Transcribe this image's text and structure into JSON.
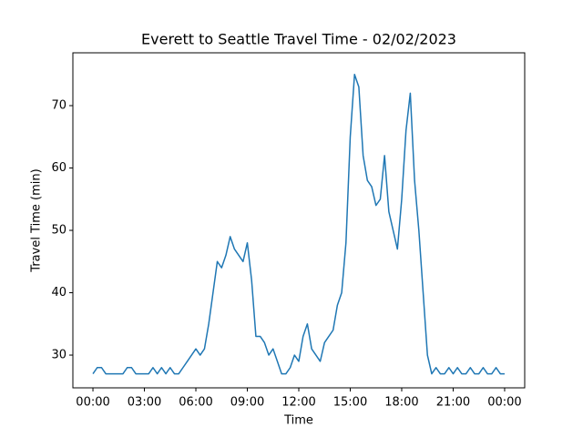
{
  "chart_data": {
    "type": "line",
    "title": "Everett to Seattle Travel Time - 02/02/2023",
    "x_label": "Time",
    "y_label": "Travel Time (min)",
    "x": [
      0,
      0.25,
      0.5,
      0.75,
      1,
      1.25,
      1.5,
      1.75,
      2,
      2.25,
      2.5,
      2.75,
      3,
      3.25,
      3.5,
      3.75,
      4,
      4.25,
      4.5,
      4.75,
      5,
      5.25,
      5.5,
      5.75,
      6,
      6.25,
      6.5,
      6.75,
      7,
      7.25,
      7.5,
      7.75,
      8,
      8.25,
      8.5,
      8.75,
      9,
      9.25,
      9.5,
      9.75,
      10,
      10.25,
      10.5,
      10.75,
      11,
      11.25,
      11.5,
      11.75,
      12,
      12.25,
      12.5,
      12.75,
      13,
      13.25,
      13.5,
      13.75,
      14,
      14.25,
      14.5,
      14.75,
      15,
      15.25,
      15.5,
      15.75,
      16,
      16.25,
      16.5,
      16.75,
      17,
      17.25,
      17.5,
      17.75,
      18,
      18.25,
      18.5,
      18.75,
      19,
      19.25,
      19.5,
      19.75,
      20,
      20.25,
      20.5,
      20.75,
      21,
      21.25,
      21.5,
      21.75,
      22,
      22.25,
      22.5,
      22.75,
      23,
      23.25,
      23.5,
      23.75,
      24
    ],
    "series": [
      {
        "name": "Travel Time",
        "color": "#1f77b4",
        "values": [
          27,
          28,
          28,
          27,
          27,
          27,
          27,
          27,
          28,
          28,
          27,
          27,
          27,
          27,
          28,
          27,
          28,
          27,
          28,
          27,
          27,
          28,
          29,
          30,
          31,
          30,
          31,
          35,
          40,
          45,
          44,
          46,
          49,
          47,
          46,
          45,
          48,
          42,
          33,
          33,
          32,
          30,
          31,
          29,
          27,
          27,
          28,
          30,
          29,
          33,
          35,
          31,
          30,
          29,
          32,
          33,
          34,
          38,
          40,
          48,
          65,
          75,
          73,
          62,
          58,
          57,
          54,
          55,
          62,
          53,
          50,
          47,
          55,
          66,
          72,
          58,
          50,
          40,
          30,
          27,
          28,
          27,
          27,
          28,
          27,
          28,
          27,
          27,
          28,
          27,
          27,
          28,
          27,
          27,
          28,
          27,
          27
        ]
      }
    ],
    "xlim": [
      -1.17,
      25.17
    ],
    "ylim": [
      24.75,
      78.47
    ],
    "xticks": [
      {
        "value": 0,
        "label": "00:00"
      },
      {
        "value": 3,
        "label": "03:00"
      },
      {
        "value": 6,
        "label": "06:00"
      },
      {
        "value": 9,
        "label": "09:00"
      },
      {
        "value": 12,
        "label": "12:00"
      },
      {
        "value": 15,
        "label": "15:00"
      },
      {
        "value": 18,
        "label": "18:00"
      },
      {
        "value": 21,
        "label": "21:00"
      },
      {
        "value": 24,
        "label": "00:00"
      }
    ],
    "yticks": [
      30,
      40,
      50,
      60,
      70
    ],
    "grid": false
  }
}
